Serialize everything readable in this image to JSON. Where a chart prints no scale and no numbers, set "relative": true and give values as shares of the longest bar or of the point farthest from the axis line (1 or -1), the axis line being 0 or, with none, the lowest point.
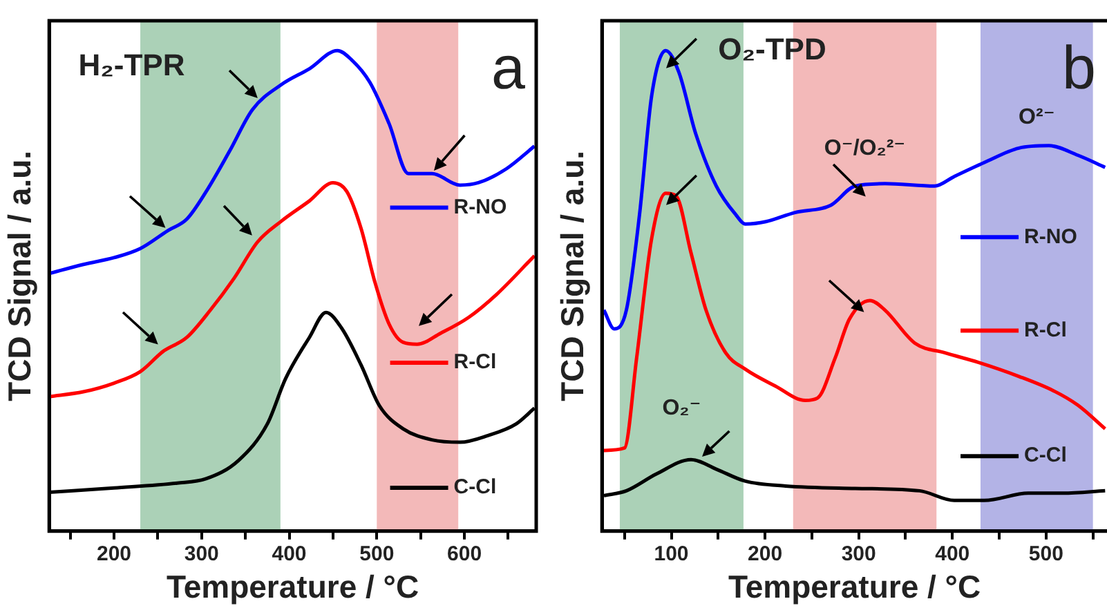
{
  "chart_data": [
    {
      "type": "line",
      "title": "H₂-TPR",
      "xlabel": "Temperature / °C",
      "ylabel": "TCD Signal / a.u.",
      "relative": true,
      "legend": "right",
      "xlim": [
        126,
        682
      ],
      "xticks": [
        {
          "value": 150,
          "label": null
        },
        200,
        {
          "value": 250,
          "label": null
        },
        300,
        {
          "value": 350,
          "label": null
        },
        400,
        {
          "value": 450,
          "label": null
        },
        500,
        {
          "value": 550,
          "label": null
        },
        600,
        {
          "value": 650,
          "label": null
        }
      ],
      "bands": [
        {
          "axis": "x",
          "from": 230,
          "to": 390,
          "color": "#2e8b4a"
        },
        {
          "axis": "x",
          "from": 500,
          "to": 593,
          "color": "#e05050"
        }
      ],
      "annotations": [
        "a"
      ],
      "series": [
        {
          "name": "R-NO",
          "color": "#0000ff",
          "x": [
            126,
            165,
            200,
            230,
            262,
            283,
            305,
            332,
            358,
            391,
            423,
            455,
            471,
            492,
            514,
            536,
            563,
            595,
            616,
            648,
            680
          ],
          "values": [
            0.536,
            0.555,
            0.569,
            0.588,
            0.626,
            0.649,
            0.706,
            0.791,
            0.877,
            0.929,
            0.962,
            1.0,
            0.981,
            0.934,
            0.848,
            0.744,
            0.744,
            0.72,
            0.725,
            0.754,
            0.801
          ]
        },
        {
          "name": "R-Cl",
          "color": "#ff0000",
          "x": [
            126,
            165,
            200,
            230,
            256,
            283,
            310,
            337,
            364,
            391,
            423,
            450,
            466,
            482,
            498,
            514,
            530,
            546,
            573,
            605,
            637,
            680
          ],
          "values": [
            0.28,
            0.29,
            0.308,
            0.332,
            0.374,
            0.403,
            0.46,
            0.526,
            0.602,
            0.645,
            0.687,
            0.725,
            0.706,
            0.63,
            0.517,
            0.431,
            0.393,
            0.389,
            0.412,
            0.445,
            0.493,
            0.573
          ]
        },
        {
          "name": "C-Cl",
          "color": "#000000",
          "x": [
            126,
            200,
            272,
            305,
            342,
            375,
            396,
            423,
            442,
            460,
            482,
            503,
            530,
            563,
            595,
            627,
            659,
            680
          ],
          "values": [
            0.081,
            0.09,
            0.1,
            0.109,
            0.147,
            0.223,
            0.318,
            0.403,
            0.455,
            0.422,
            0.346,
            0.261,
            0.213,
            0.19,
            0.185,
            0.199,
            0.223,
            0.256
          ]
        }
      ]
    },
    {
      "type": "line",
      "title": "O₂-TPD",
      "xlabel": "Temperature / °C",
      "ylabel": "TCD Signal / a.u.",
      "relative": true,
      "legend": "right",
      "xlim": [
        26,
        565
      ],
      "xticks": [
        {
          "value": 50,
          "label": null
        },
        100,
        {
          "value": 150,
          "label": null
        },
        200,
        {
          "value": 250,
          "label": null
        },
        300,
        {
          "value": 350,
          "label": null
        },
        400,
        {
          "value": 450,
          "label": null
        },
        500,
        {
          "value": 550,
          "label": null
        }
      ],
      "bands": [
        {
          "axis": "x",
          "from": 45,
          "to": 177,
          "color": "#2e8b4a",
          "label": "O₂⁻"
        },
        {
          "axis": "x",
          "from": 230,
          "to": 383,
          "color": "#e05050",
          "label": "O⁻/O₂²⁻"
        },
        {
          "axis": "x",
          "from": 430,
          "to": 550,
          "color": "#4040c0",
          "label": "O²⁻"
        }
      ],
      "annotations": [
        "b"
      ],
      "series": [
        {
          "name": "R-NO",
          "color": "#0000ff",
          "x": [
            28,
            39,
            52,
            66,
            79,
            94,
            108,
            126,
            148,
            169,
            179,
            201,
            232,
            270,
            296,
            328,
            381,
            402,
            434,
            471,
            503,
            534,
            563
          ],
          "values": [
            0.46,
            0.421,
            0.46,
            0.658,
            0.906,
            1.0,
            0.955,
            0.827,
            0.718,
            0.658,
            0.639,
            0.644,
            0.663,
            0.678,
            0.718,
            0.723,
            0.718,
            0.738,
            0.767,
            0.797,
            0.802,
            0.782,
            0.757
          ]
        },
        {
          "name": "R-Cl",
          "color": "#ff0000",
          "x": [
            28,
            50,
            63,
            79,
            94,
            105,
            121,
            137,
            158,
            179,
            211,
            243,
            256,
            275,
            290,
            312,
            328,
            360,
            392,
            428,
            471,
            508,
            534,
            563
          ],
          "values": [
            0.168,
            0.173,
            0.361,
            0.609,
            0.703,
            0.698,
            0.579,
            0.46,
            0.371,
            0.337,
            0.302,
            0.272,
            0.277,
            0.361,
            0.441,
            0.48,
            0.46,
            0.391,
            0.371,
            0.351,
            0.322,
            0.292,
            0.262,
            0.213
          ]
        },
        {
          "name": "C-Cl",
          "color": "#000000",
          "x": [
            28,
            52,
            84,
            121,
            148,
            179,
            222,
            296,
            365,
            402,
            434,
            481,
            518,
            563
          ],
          "values": [
            0.074,
            0.084,
            0.119,
            0.149,
            0.129,
            0.104,
            0.094,
            0.089,
            0.084,
            0.064,
            0.064,
            0.079,
            0.079,
            0.084
          ]
        }
      ]
    }
  ]
}
